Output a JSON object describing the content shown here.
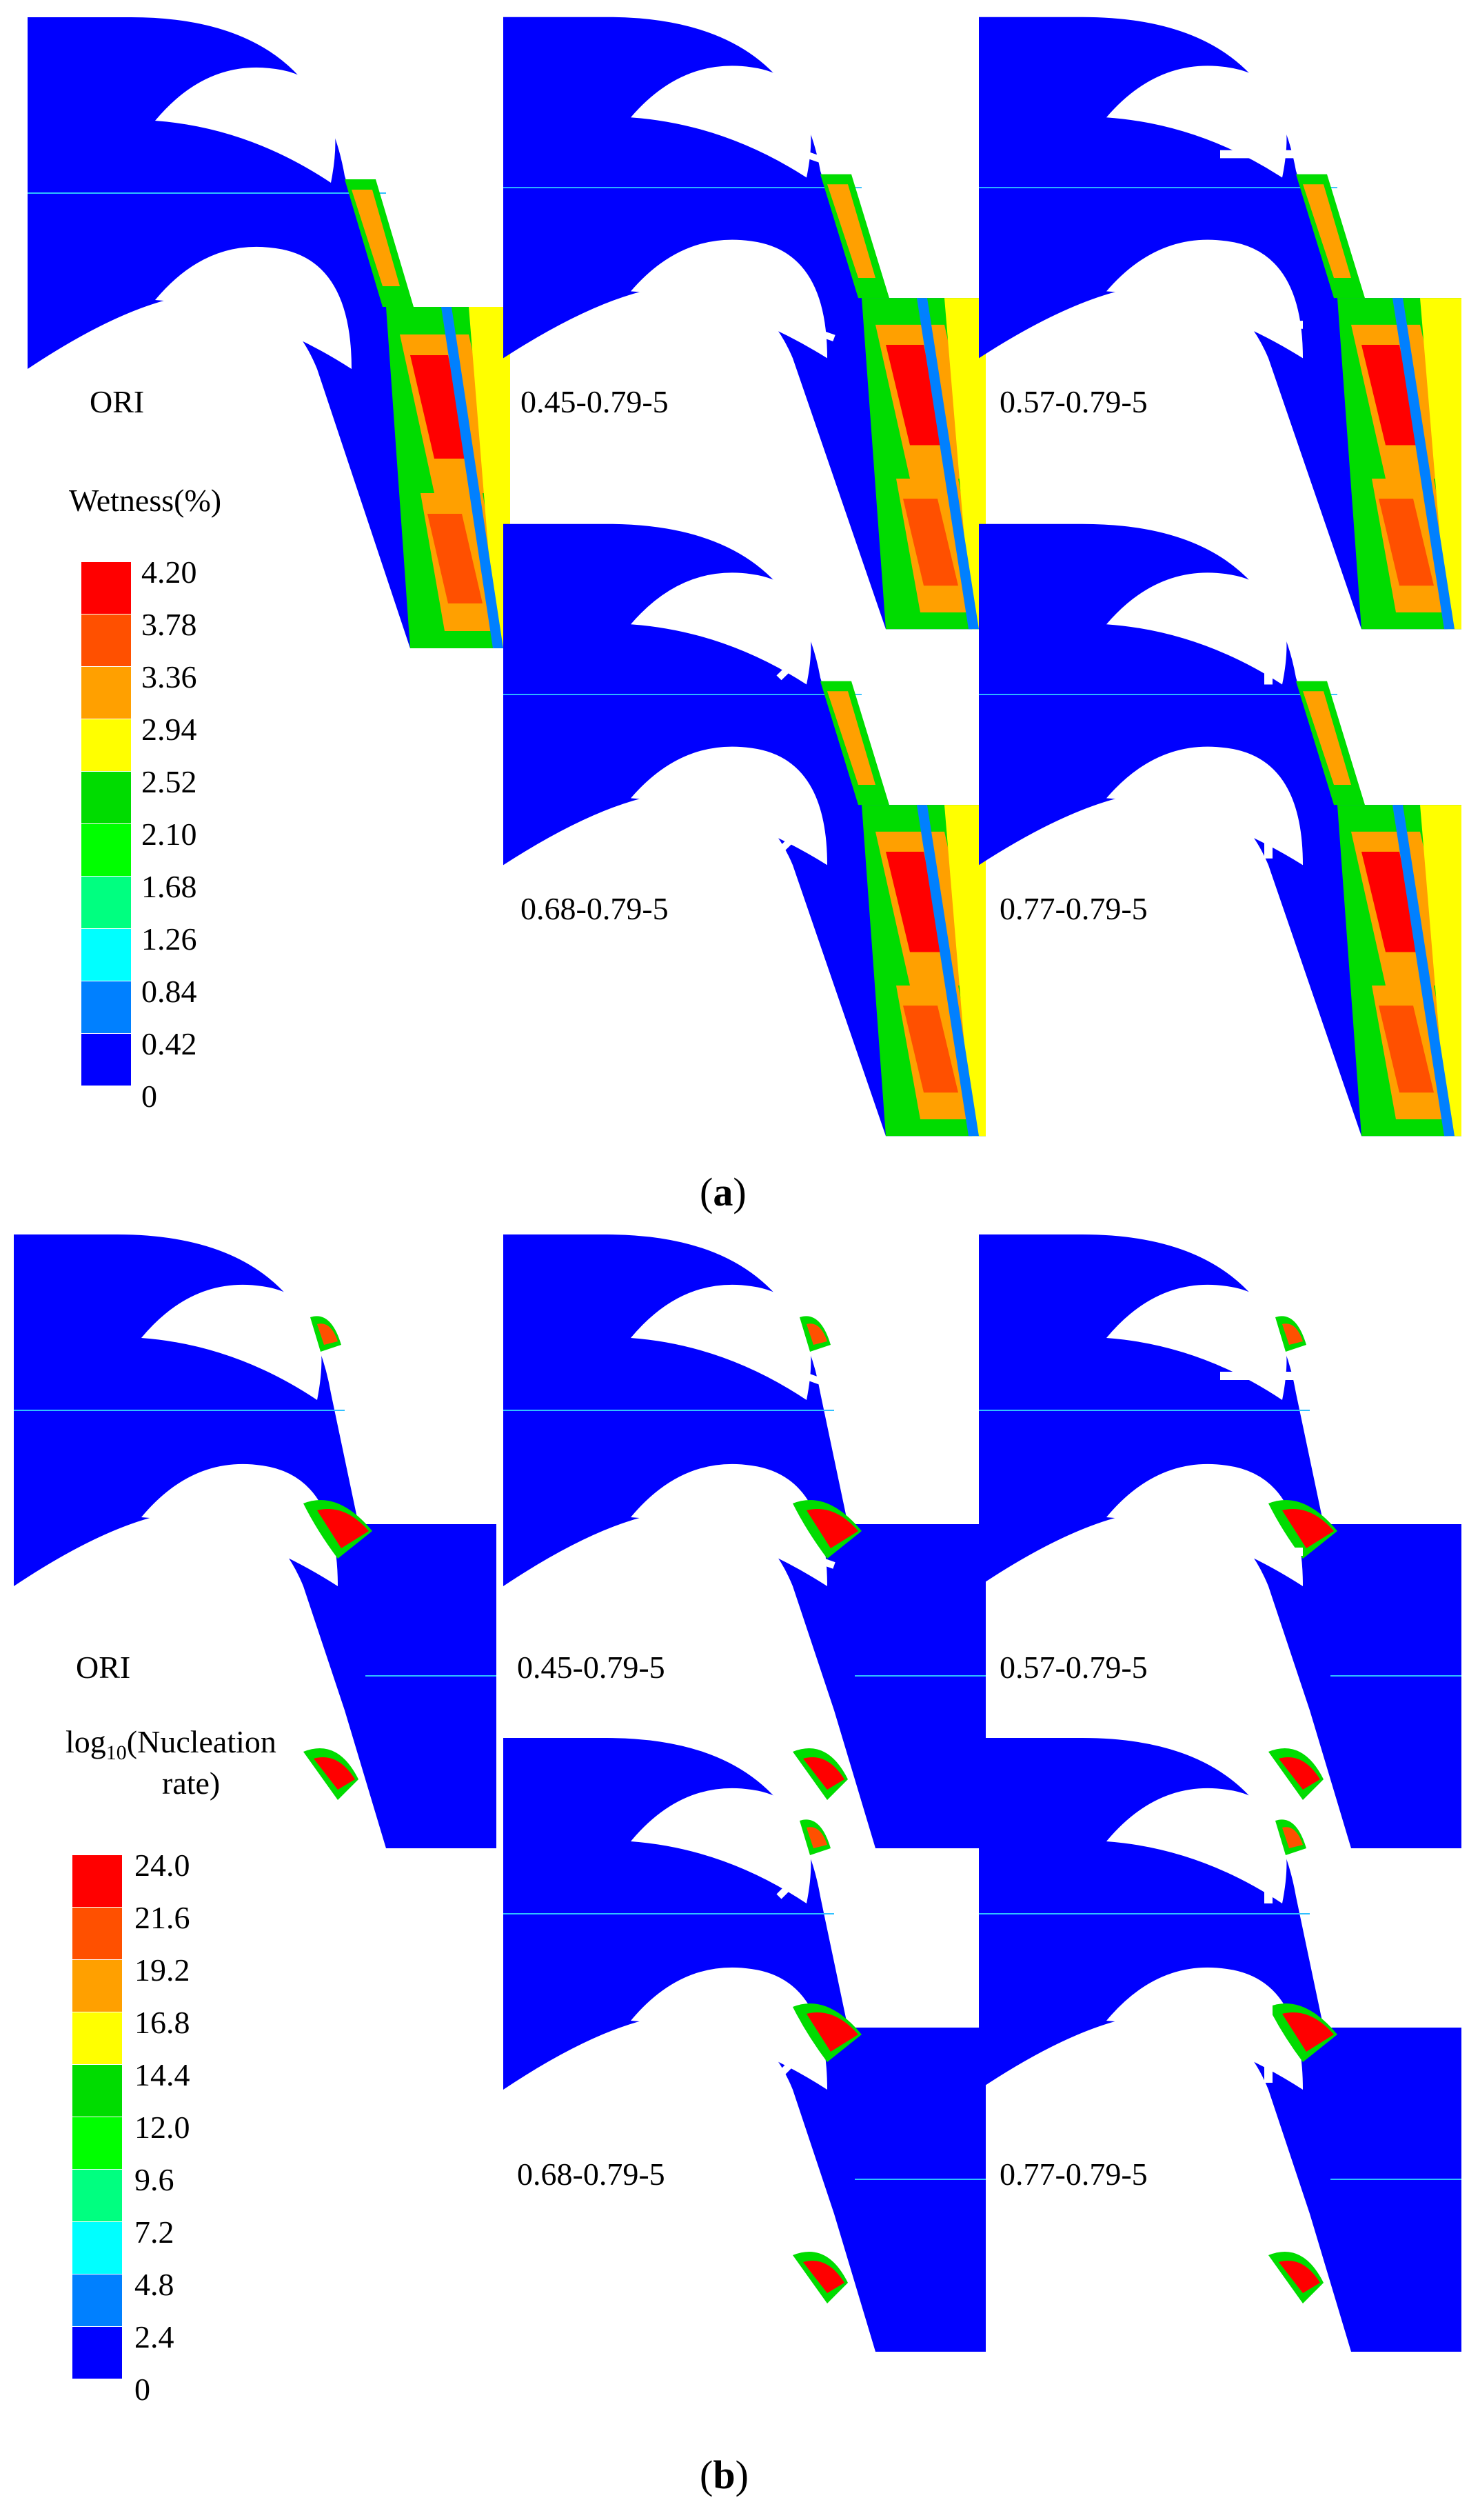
{
  "panel_a": {
    "caption_open": "(",
    "caption_letter": "a",
    "caption_close": ")",
    "legend_title": "Wetness(%)",
    "legend_ticks": [
      "4.20",
      "3.78",
      "3.36",
      "2.94",
      "2.52",
      "2.10",
      "1.68",
      "1.26",
      "0.84",
      "0.42",
      "0"
    ],
    "cases": [
      "ORI",
      "0.45-0.79-5",
      "0.57-0.79-5",
      "0.68-0.79-5",
      "0.77-0.79-5"
    ]
  },
  "panel_b": {
    "caption_open": "(",
    "caption_letter": "b",
    "caption_close": ")",
    "legend_title_prefix": "log",
    "legend_title_sub": "10",
    "legend_title_rest": "(Nucleation",
    "legend_title_line2": "rate)",
    "legend_ticks": [
      "24.0",
      "21.6",
      "19.2",
      "16.8",
      "14.4",
      "12.0",
      "9.6",
      "7.2",
      "4.8",
      "2.4",
      "0"
    ],
    "cases": [
      "ORI",
      "0.45-0.79-5",
      "0.57-0.79-5",
      "0.68-0.79-5",
      "0.77-0.79-5"
    ]
  },
  "colors": {
    "scale": [
      "#ff0000",
      "#ff5000",
      "#ffa000",
      "#ffff00",
      "#00dc00",
      "#00ff00",
      "#00ff80",
      "#00ffff",
      "#0080ff",
      "#0000ff",
      "#0000ff"
    ],
    "base_flow": "#0000ff",
    "blade": "#ffffff"
  }
}
